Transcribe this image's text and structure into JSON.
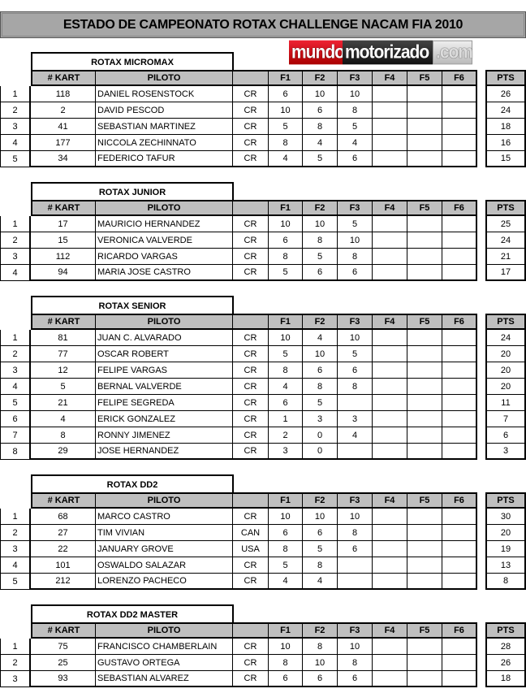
{
  "title": "ESTADO DE CAMPEONATO ROTAX CHALLENGE NACAM FIA 2010",
  "logo": {
    "part1": "mundo",
    "part2": "motorizado",
    "part3": ".com"
  },
  "headers": {
    "kart": "# KART",
    "piloto": "PILOTO",
    "country": "",
    "races": [
      "F1",
      "F2",
      "F3",
      "F4",
      "F5",
      "F6"
    ],
    "pts": "PTS"
  },
  "categories": [
    {
      "name": "ROTAX MICROMAX",
      "rows": [
        [
          "1",
          "118",
          "DANIEL ROSENSTOCK",
          "CR",
          "6",
          "10",
          "10",
          "",
          "",
          "",
          "26"
        ],
        [
          "2",
          "2",
          "DAVID PESCOD",
          "CR",
          "10",
          "6",
          "8",
          "",
          "",
          "",
          "24"
        ],
        [
          "3",
          "41",
          "SEBASTIAN MARTINEZ",
          "CR",
          "5",
          "8",
          "5",
          "",
          "",
          "",
          "18"
        ],
        [
          "4",
          "177",
          "NICCOLA ZECHINNATO",
          "CR",
          "8",
          "4",
          "4",
          "",
          "",
          "",
          "16"
        ],
        [
          "5",
          "34",
          "FEDERICO TAFUR",
          "CR",
          "4",
          "5",
          "6",
          "",
          "",
          "",
          "15"
        ]
      ]
    },
    {
      "name": "ROTAX JUNIOR",
      "rows": [
        [
          "1",
          "17",
          "MAURICIO HERNANDEZ",
          "CR",
          "10",
          "10",
          "5",
          "",
          "",
          "",
          "25"
        ],
        [
          "2",
          "15",
          "VERONICA VALVERDE",
          "CR",
          "6",
          "8",
          "10",
          "",
          "",
          "",
          "24"
        ],
        [
          "3",
          "112",
          "RICARDO VARGAS",
          "CR",
          "8",
          "5",
          "8",
          "",
          "",
          "",
          "21"
        ],
        [
          "4",
          "94",
          "MARIA JOSE CASTRO",
          "CR",
          "5",
          "6",
          "6",
          "",
          "",
          "",
          "17"
        ]
      ]
    },
    {
      "name": "ROTAX SENIOR",
      "rows": [
        [
          "1",
          "81",
          "JUAN C. ALVARADO",
          "CR",
          "10",
          "4",
          "10",
          "",
          "",
          "",
          "24"
        ],
        [
          "2",
          "77",
          "OSCAR ROBERT",
          "CR",
          "5",
          "10",
          "5",
          "",
          "",
          "",
          "20"
        ],
        [
          "3",
          "12",
          "FELIPE VARGAS",
          "CR",
          "8",
          "6",
          "6",
          "",
          "",
          "",
          "20"
        ],
        [
          "4",
          "5",
          "BERNAL VALVERDE",
          "CR",
          "4",
          "8",
          "8",
          "",
          "",
          "",
          "20"
        ],
        [
          "5",
          "21",
          "FELIPE SEGREDA",
          "CR",
          "6",
          "5",
          "",
          "",
          "",
          "",
          "11"
        ],
        [
          "6",
          "4",
          "ERICK GONZALEZ",
          "CR",
          "1",
          "3",
          "3",
          "",
          "",
          "",
          "7"
        ],
        [
          "7",
          "8",
          "RONNY JIMENEZ",
          "CR",
          "2",
          "0",
          "4",
          "",
          "",
          "",
          "6"
        ],
        [
          "8",
          "29",
          "JOSE HERNANDEZ",
          "CR",
          "3",
          "0",
          "",
          "",
          "",
          "",
          "3"
        ]
      ]
    },
    {
      "name": "ROTAX DD2",
      "rows": [
        [
          "1",
          "68",
          "MARCO CASTRO",
          "CR",
          "10",
          "10",
          "10",
          "",
          "",
          "",
          "30"
        ],
        [
          "2",
          "27",
          "TIM VIVIAN",
          "CAN",
          "6",
          "6",
          "8",
          "",
          "",
          "",
          "20"
        ],
        [
          "3",
          "22",
          "JANUARY GROVE",
          "USA",
          "8",
          "5",
          "6",
          "",
          "",
          "",
          "19"
        ],
        [
          "4",
          "101",
          "OSWALDO SALAZAR",
          "CR",
          "5",
          "8",
          "",
          "",
          "",
          "",
          "13"
        ],
        [
          "5",
          "212",
          "LORENZO PACHECO",
          "CR",
          "4",
          "4",
          "",
          "",
          "",
          "",
          "8"
        ]
      ]
    },
    {
      "name": "ROTAX DD2 MASTER",
      "rows": [
        [
          "1",
          "75",
          "FRANCISCO CHAMBERLAIN",
          "CR",
          "10",
          "8",
          "10",
          "",
          "",
          "",
          "28"
        ],
        [
          "2",
          "25",
          "GUSTAVO ORTEGA",
          "CR",
          "8",
          "10",
          "8",
          "",
          "",
          "",
          "26"
        ],
        [
          "3",
          "93",
          "SEBASTIAN ALVAREZ",
          "CR",
          "6",
          "6",
          "6",
          "",
          "",
          "",
          "18"
        ]
      ]
    }
  ]
}
